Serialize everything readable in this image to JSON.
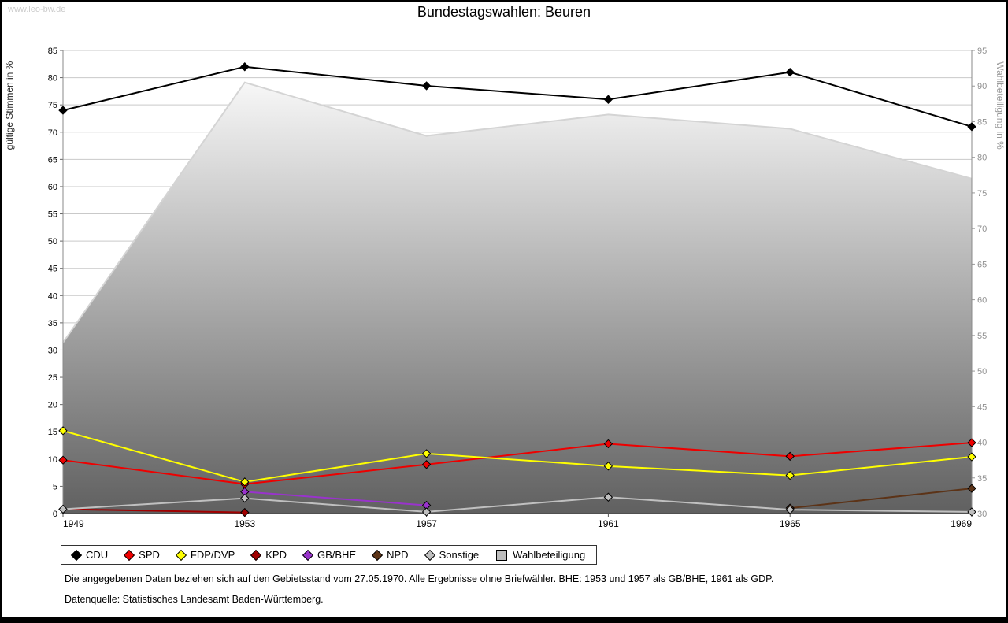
{
  "watermark": "www.leo-bw.de",
  "title": "Bundestagswahlen: Beuren",
  "chart_data": {
    "type": "line",
    "x_labels": [
      "1949",
      "1953",
      "1957",
      "1961",
      "1965",
      "1969"
    ],
    "left_axis": {
      "label": "gültige Stimmen in %",
      "min": 0,
      "max": 85,
      "step": 5
    },
    "right_axis": {
      "label": "Wahlbeteiligung in %",
      "min": 30,
      "max": 95,
      "step": 5
    },
    "grid": true,
    "area": {
      "name": "Wahlbeteiligung",
      "axis": "right",
      "values": [
        54,
        90.5,
        83,
        86,
        84,
        77
      ],
      "gradient_top": "#f7f7f7",
      "gradient_bottom": "#606060",
      "edge_color": "#d4d4d4"
    },
    "series": [
      {
        "name": "CDU",
        "color": "#000000",
        "values": [
          74,
          82,
          78.5,
          76,
          81,
          71
        ]
      },
      {
        "name": "SPD",
        "color": "#ee0000",
        "values": [
          9.8,
          5.4,
          9,
          12.8,
          10.5,
          13
        ]
      },
      {
        "name": "FDP/DVP",
        "color": "#ffff00",
        "values": [
          15.2,
          5.8,
          11,
          8.7,
          7,
          10.4
        ]
      },
      {
        "name": "KPD",
        "color": "#a00000",
        "values": [
          0.8,
          0.2,
          null,
          null,
          null,
          null
        ]
      },
      {
        "name": "GB/BHE",
        "color": "#9933cc",
        "values": [
          null,
          4,
          1.5,
          null,
          null,
          null
        ]
      },
      {
        "name": "NPD",
        "color": "#5c3317",
        "values": [
          null,
          null,
          null,
          null,
          1,
          4.6
        ]
      },
      {
        "name": "Sonstige",
        "color": "#c0c0c0",
        "values": [
          0.8,
          2.8,
          0.3,
          3,
          0.7,
          0.3
        ]
      }
    ]
  },
  "legend": {
    "items": [
      {
        "label": "CDU",
        "color": "#000000",
        "shape": "diamond"
      },
      {
        "label": "SPD",
        "color": "#ee0000",
        "shape": "diamond"
      },
      {
        "label": "FDP/DVP",
        "color": "#ffff00",
        "shape": "diamond"
      },
      {
        "label": "KPD",
        "color": "#a00000",
        "shape": "diamond"
      },
      {
        "label": "GB/BHE",
        "color": "#9933cc",
        "shape": "diamond"
      },
      {
        "label": "NPD",
        "color": "#5c3317",
        "shape": "diamond"
      },
      {
        "label": "Sonstige",
        "color": "#c0c0c0",
        "shape": "diamond"
      },
      {
        "label": "Wahlbeteiligung",
        "color": "#bdbdbd",
        "shape": "square"
      }
    ]
  },
  "footer": {
    "note": "Die angegebenen Daten beziehen sich auf den Gebietsstand vom 27.05.1970. Alle Ergebnisse ohne Briefwähler. BHE: 1953 und 1957 als GB/BHE, 1961 als GDP.",
    "source": "Datenquelle: Statistisches Landesamt Baden-Württemberg."
  }
}
